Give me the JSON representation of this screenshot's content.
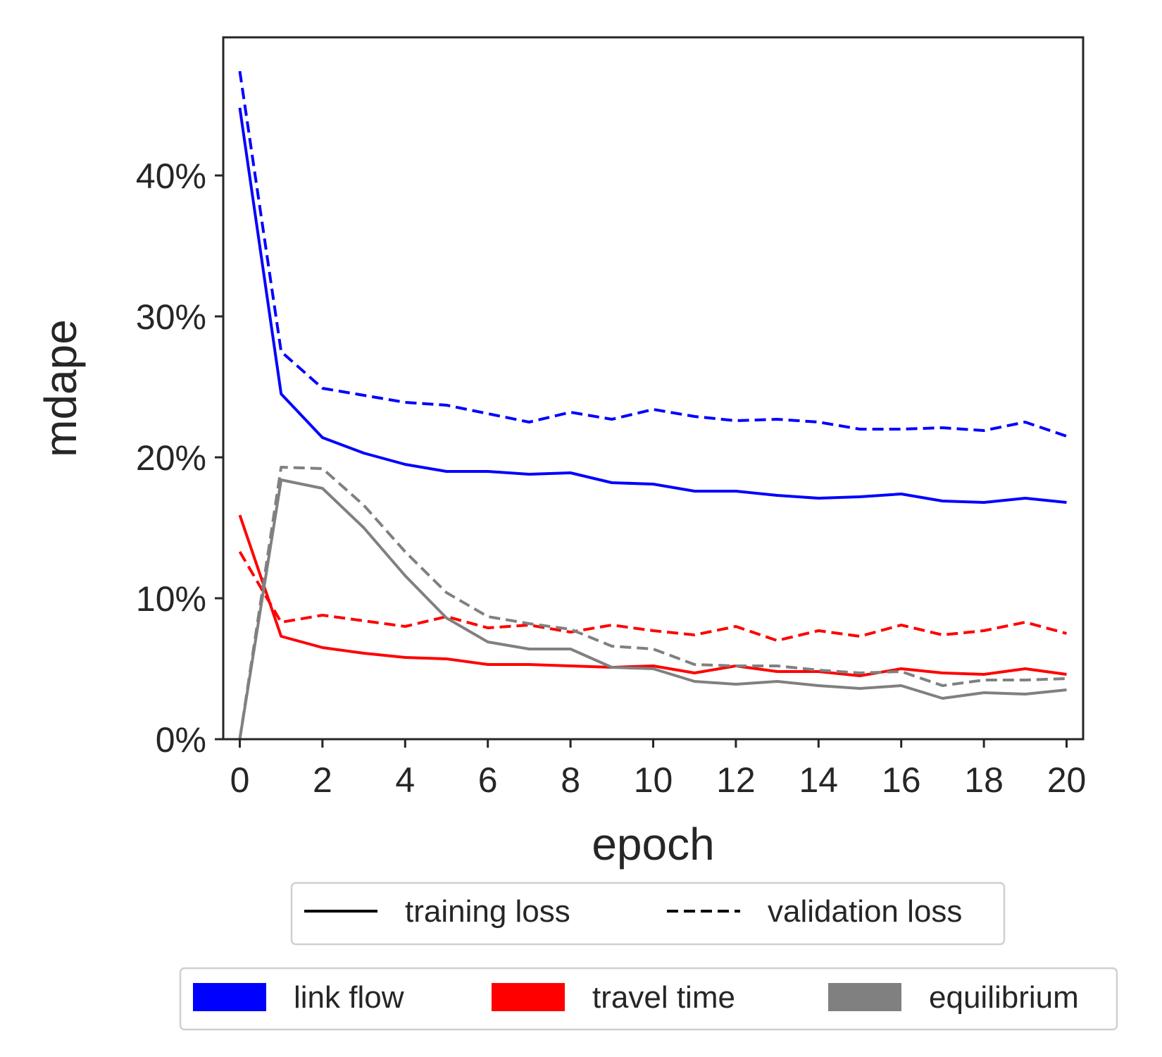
{
  "chart_data": {
    "type": "line",
    "xlabel": "epoch",
    "ylabel": "mdape",
    "xlim": [
      -0.4,
      20.4
    ],
    "ylim": [
      0,
      49.8
    ],
    "x_ticks": [
      0,
      2,
      4,
      6,
      8,
      10,
      12,
      14,
      16,
      18,
      20
    ],
    "x_tick_labels": [
      "0",
      "2",
      "4",
      "6",
      "8",
      "10",
      "12",
      "14",
      "16",
      "18",
      "20"
    ],
    "y_ticks": [
      0,
      10,
      20,
      30,
      40
    ],
    "y_tick_labels": [
      "0%",
      "10%",
      "20%",
      "30%",
      "40%"
    ],
    "grid": false,
    "x": [
      0,
      1,
      2,
      3,
      4,
      5,
      6,
      7,
      8,
      9,
      10,
      11,
      12,
      13,
      14,
      15,
      16,
      17,
      18,
      19,
      20
    ],
    "series": [
      {
        "component": "link flow",
        "loss": "training loss",
        "color": "#0000ff",
        "dashed": false,
        "values": [
          44.8,
          24.5,
          21.4,
          20.3,
          19.5,
          19.0,
          19.0,
          18.8,
          18.9,
          18.2,
          18.1,
          17.6,
          17.6,
          17.3,
          17.1,
          17.2,
          17.4,
          16.9,
          16.8,
          17.1,
          16.8
        ]
      },
      {
        "component": "link flow",
        "loss": "validation loss",
        "color": "#0000ff",
        "dashed": true,
        "values": [
          47.4,
          27.5,
          24.9,
          24.4,
          23.9,
          23.7,
          23.1,
          22.5,
          23.2,
          22.7,
          23.4,
          22.9,
          22.6,
          22.7,
          22.5,
          22.0,
          22.0,
          22.1,
          21.9,
          22.5,
          21.5
        ]
      },
      {
        "component": "travel time",
        "loss": "training loss",
        "color": "#ff0000",
        "dashed": false,
        "values": [
          15.9,
          7.3,
          6.5,
          6.1,
          5.8,
          5.7,
          5.3,
          5.3,
          5.2,
          5.1,
          5.2,
          4.7,
          5.2,
          4.8,
          4.8,
          4.5,
          5.0,
          4.7,
          4.6,
          5.0,
          4.6
        ]
      },
      {
        "component": "travel time",
        "loss": "validation loss",
        "color": "#ff0000",
        "dashed": true,
        "values": [
          13.3,
          8.3,
          8.8,
          8.4,
          8.0,
          8.7,
          7.9,
          8.1,
          7.6,
          8.1,
          7.7,
          7.4,
          8.0,
          7.0,
          7.7,
          7.3,
          8.1,
          7.4,
          7.7,
          8.3,
          7.5
        ]
      },
      {
        "component": "equilibrium",
        "loss": "training loss",
        "color": "#808080",
        "dashed": false,
        "values": [
          0.0,
          18.4,
          17.8,
          15.0,
          11.6,
          8.6,
          6.9,
          6.4,
          6.4,
          5.1,
          5.0,
          4.1,
          3.9,
          4.1,
          3.8,
          3.6,
          3.8,
          2.9,
          3.3,
          3.2,
          3.5
        ]
      },
      {
        "component": "equilibrium",
        "loss": "validation loss",
        "color": "#808080",
        "dashed": true,
        "values": [
          0.0,
          19.3,
          19.2,
          16.6,
          13.3,
          10.4,
          8.7,
          8.2,
          7.8,
          6.6,
          6.4,
          5.3,
          5.2,
          5.2,
          4.9,
          4.7,
          4.8,
          3.8,
          4.2,
          4.2,
          4.3
        ]
      }
    ],
    "legend_linestyle": {
      "placement": "below",
      "entries": [
        {
          "label": "training loss",
          "dashed": false,
          "color": "#000000"
        },
        {
          "label": "validation loss",
          "dashed": true,
          "color": "#000000"
        }
      ]
    },
    "legend_components": {
      "placement": "below",
      "entries": [
        {
          "label": "link flow",
          "color": "#0000ff"
        },
        {
          "label": "travel time",
          "color": "#ff0000"
        },
        {
          "label": "equilibrium",
          "color": "#808080"
        }
      ]
    }
  }
}
